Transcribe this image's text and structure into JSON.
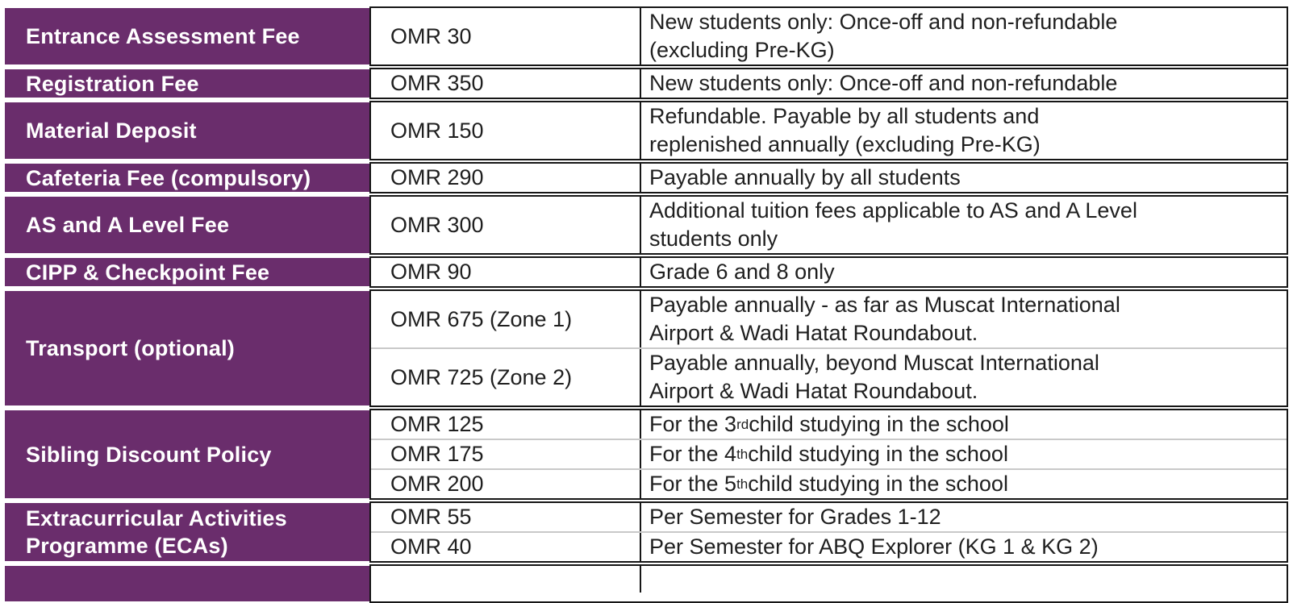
{
  "colors": {
    "header_purple": "#6a2d6c",
    "border_black": "#161616",
    "separator_gray": "#c9c9c9",
    "body_text": "#1f1f1f",
    "label_text": "#ffffff"
  },
  "table": {
    "groups": [
      {
        "label": "Entrance Assessment Fee",
        "rows": [
          {
            "amount": "OMR 30",
            "description": "New students only: Once-off and non-refundable\n(excluding Pre-KG)"
          }
        ]
      },
      {
        "label": "Registration Fee",
        "rows": [
          {
            "amount": "OMR 350",
            "description": "New students only: Once-off and non-refundable"
          }
        ]
      },
      {
        "label": "Material Deposit",
        "rows": [
          {
            "amount": "OMR 150",
            "description": "Refundable. Payable by all students and\nreplenished annually (excluding Pre-KG)"
          }
        ]
      },
      {
        "label": "Cafeteria Fee (compulsory)",
        "rows": [
          {
            "amount": "OMR 290",
            "description": "Payable annually by all students"
          }
        ]
      },
      {
        "label": "AS and A Level Fee",
        "rows": [
          {
            "amount": "OMR 300",
            "description": "Additional tuition fees applicable to AS and A Level\nstudents only"
          }
        ]
      },
      {
        "label": "CIPP & Checkpoint Fee",
        "rows": [
          {
            "amount": "OMR 90",
            "description": "Grade 6 and 8 only"
          }
        ]
      },
      {
        "label": "Transport (optional)",
        "rows": [
          {
            "amount": "OMR 675 (Zone 1)",
            "description": "Payable annually - as far as Muscat International\nAirport & Wadi Hatat Roundabout."
          },
          {
            "amount": "OMR 725 (Zone 2)",
            "description": "Payable annually, beyond Muscat International\nAirport & Wadi Hatat Roundabout."
          }
        ]
      },
      {
        "label": "Sibling Discount Policy",
        "rows": [
          {
            "amount": "OMR 125",
            "desc_parts": [
              "For the 3",
              "rd",
              " child studying in the school"
            ]
          },
          {
            "amount": "OMR 175",
            "desc_parts": [
              "For the 4",
              "th",
              " child studying in the school"
            ]
          },
          {
            "amount": "OMR 200",
            "desc_parts": [
              "For the 5",
              "th",
              " child studying in the school"
            ]
          }
        ]
      },
      {
        "label": "Extracurricular Activities\nProgramme (ECAs)",
        "rows": [
          {
            "amount": "OMR 55",
            "description": "Per Semester for Grades 1-12"
          },
          {
            "amount": "OMR 40",
            "description": "Per Semester for ABQ Explorer (KG 1 & KG 2)"
          }
        ]
      },
      {
        "label": "",
        "rows": [
          {
            "amount": "",
            "description": ""
          }
        ]
      }
    ]
  }
}
